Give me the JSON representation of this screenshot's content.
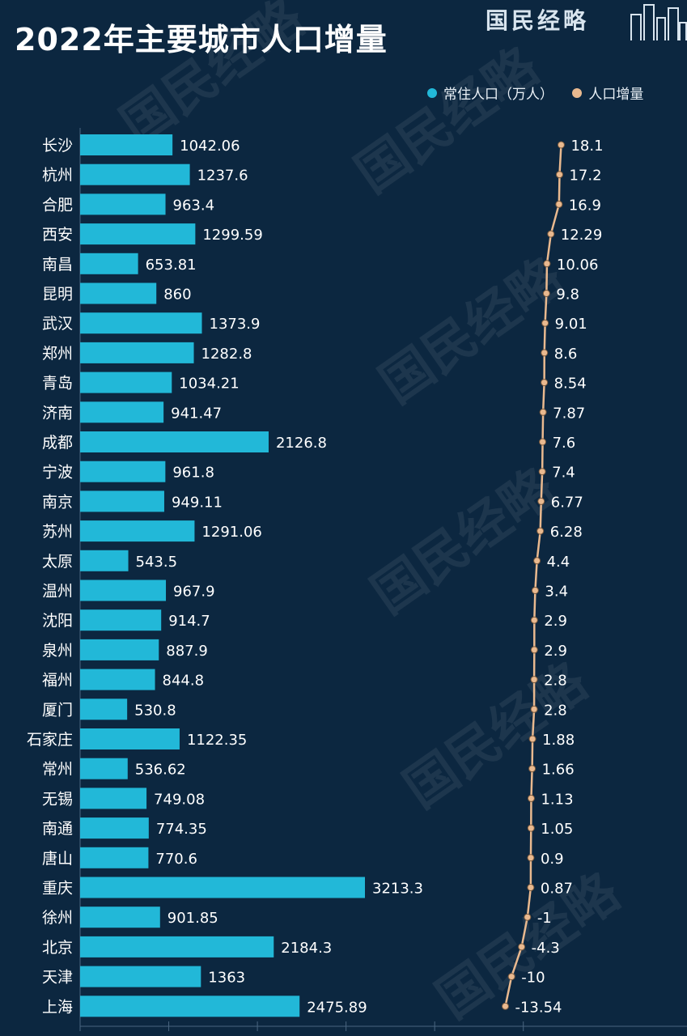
{
  "header": {
    "brand": "国民经略"
  },
  "colors": {
    "background": "#0c2740",
    "bar": "#22b8d8",
    "line": "#e9b98f",
    "grid": "#4a6680"
  },
  "chart_data": {
    "type": "bar+line",
    "title": "2022年主要城市人口增量",
    "categories": [
      "长沙",
      "杭州",
      "合肥",
      "西安",
      "南昌",
      "昆明",
      "武汉",
      "郑州",
      "青岛",
      "济南",
      "成都",
      "宁波",
      "南京",
      "苏州",
      "太原",
      "温州",
      "沈阳",
      "泉州",
      "福州",
      "厦门",
      "石家庄",
      "常州",
      "无锡",
      "南通",
      "唐山",
      "重庆",
      "徐州",
      "北京",
      "天津",
      "上海"
    ],
    "series": [
      {
        "name": "常住人口（万人）",
        "type": "bar",
        "values": [
          1042.06,
          1237.6,
          963.4,
          1299.59,
          653.81,
          860,
          1373.9,
          1282.8,
          1034.21,
          941.47,
          2126.8,
          961.8,
          949.11,
          1291.06,
          543.5,
          967.9,
          914.7,
          887.9,
          844.8,
          530.8,
          1122.35,
          536.62,
          749.08,
          774.35,
          770.6,
          3213.3,
          901.85,
          2184.3,
          1363,
          2475.89
        ],
        "labels": [
          "1042.06",
          "1237.6",
          "963.4",
          "1299.59",
          "653.81",
          "860",
          "1373.9",
          "1282.8",
          "1034.21",
          "941.47",
          "2126.8",
          "961.8",
          "949.11",
          "1291.06",
          "543.5",
          "967.9",
          "914.7",
          "887.9",
          "844.8",
          "530.8",
          "1122.35",
          "536.62",
          "749.08",
          "774.35",
          "770.6",
          "3213.3",
          "901.85",
          "2184.3",
          "1363",
          "2475.89"
        ]
      },
      {
        "name": "人口增量",
        "type": "line",
        "values": [
          18.1,
          17.2,
          16.9,
          12.29,
          10.06,
          9.8,
          9.01,
          8.6,
          8.54,
          7.87,
          7.6,
          7.4,
          6.77,
          6.28,
          4.4,
          3.4,
          2.9,
          2.9,
          2.8,
          2.8,
          1.88,
          1.66,
          1.13,
          1.05,
          0.9,
          0.87,
          -1,
          -4.3,
          -10,
          -13.54
        ],
        "labels": [
          "18.1",
          "17.2",
          "16.9",
          "12.29",
          "10.06",
          "9.8",
          "9.01",
          "8.6",
          "8.54",
          "7.87",
          "7.6",
          "7.4",
          "6.77",
          "6.28",
          "4.4",
          "3.4",
          "2.9",
          "2.9",
          "2.8",
          "2.8",
          "1.88",
          "1.66",
          "1.13",
          "1.05",
          "0.9",
          "0.87",
          "-1",
          "-4.3",
          "-10",
          "-13.54"
        ]
      }
    ],
    "legend_position": "top-right",
    "grid": false
  }
}
